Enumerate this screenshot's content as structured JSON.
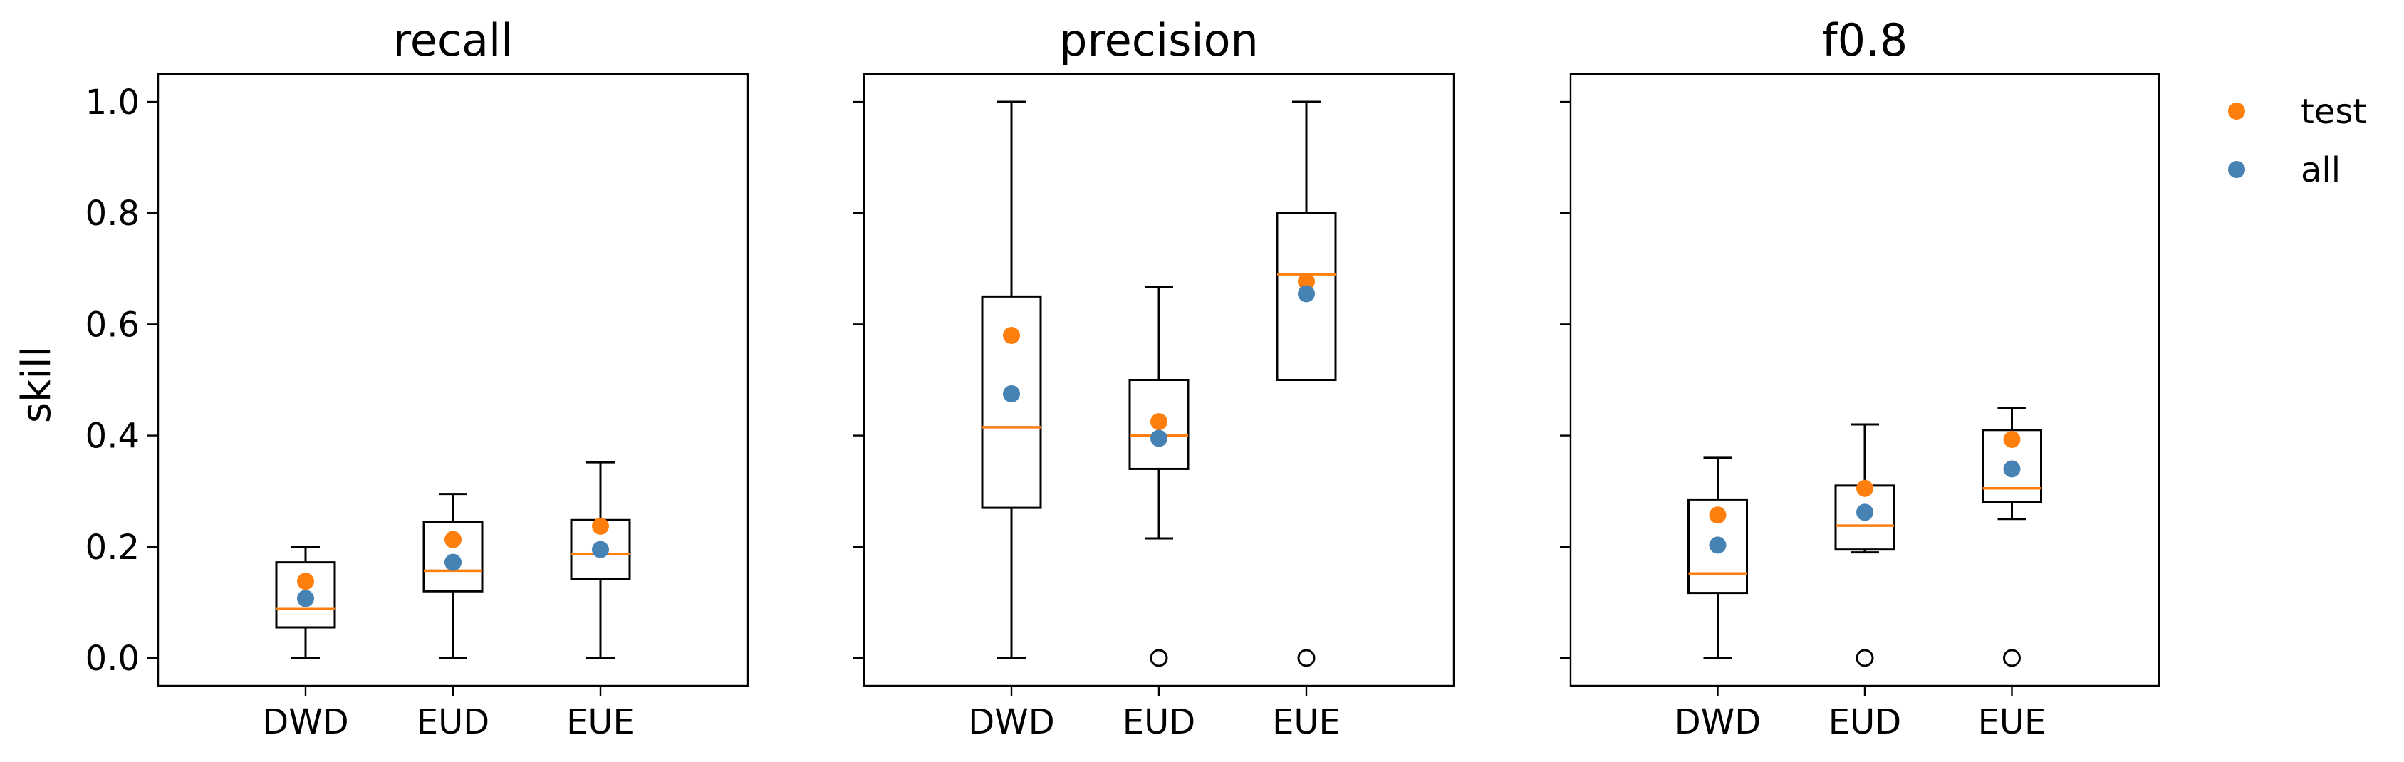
{
  "chart_data": {
    "type": "box",
    "ylabel": "skill",
    "ylim": [
      -0.05,
      1.05
    ],
    "yticks": [
      0.0,
      0.2,
      0.4,
      0.6,
      0.8,
      1.0
    ],
    "ytick_labels": [
      "0.0",
      "0.2",
      "0.4",
      "0.6",
      "0.8",
      "1.0"
    ],
    "categories": [
      "DWD",
      "EUD",
      "EUE"
    ],
    "legend": {
      "location": "upper-right-outside",
      "entries": [
        {
          "label": "test",
          "color": "#ff7f0e"
        },
        {
          "label": "all",
          "color": "#4682b4"
        }
      ]
    },
    "colors": {
      "test": "#ff7f0e",
      "all": "#4682b4",
      "median": "#ff7f0e",
      "box": "#000000"
    },
    "panels": [
      {
        "title": "recall",
        "boxes": [
          {
            "category": "DWD",
            "whislo": 0.0,
            "q1": 0.055,
            "median": 0.088,
            "q3": 0.172,
            "whishi": 0.2,
            "fliers": []
          },
          {
            "category": "EUD",
            "whislo": 0.0,
            "q1": 0.12,
            "median": 0.157,
            "q3": 0.245,
            "whishi": 0.295,
            "fliers": []
          },
          {
            "category": "EUE",
            "whislo": 0.0,
            "q1": 0.142,
            "median": 0.187,
            "q3": 0.248,
            "whishi": 0.352,
            "fliers": []
          }
        ],
        "test": [
          0.138,
          0.213,
          0.237
        ],
        "all": [
          0.107,
          0.172,
          0.195
        ]
      },
      {
        "title": "precision",
        "boxes": [
          {
            "category": "DWD",
            "whislo": 0.0,
            "q1": 0.27,
            "median": 0.415,
            "q3": 0.65,
            "whishi": 1.0,
            "fliers": []
          },
          {
            "category": "EUD",
            "whislo": 0.215,
            "q1": 0.34,
            "median": 0.4,
            "q3": 0.5,
            "whishi": 0.667,
            "fliers": [
              0.0
            ]
          },
          {
            "category": "EUE",
            "whislo": 0.5,
            "q1": 0.5,
            "median": 0.69,
            "q3": 0.8,
            "whishi": 1.0,
            "fliers": [
              0.0
            ]
          }
        ],
        "test": [
          0.58,
          0.425,
          0.677
        ],
        "all": [
          0.475,
          0.395,
          0.655
        ]
      },
      {
        "title": "f0.8",
        "boxes": [
          {
            "category": "DWD",
            "whislo": 0.0,
            "q1": 0.117,
            "median": 0.152,
            "q3": 0.285,
            "whishi": 0.36,
            "fliers": []
          },
          {
            "category": "EUD",
            "whislo": 0.19,
            "q1": 0.195,
            "median": 0.238,
            "q3": 0.31,
            "whishi": 0.42,
            "fliers": [
              0.0
            ]
          },
          {
            "category": "EUE",
            "whislo": 0.25,
            "q1": 0.28,
            "median": 0.305,
            "q3": 0.41,
            "whishi": 0.45,
            "fliers": [
              0.0
            ]
          }
        ],
        "test": [
          0.257,
          0.305,
          0.393
        ],
        "all": [
          0.203,
          0.262,
          0.34
        ]
      }
    ]
  }
}
